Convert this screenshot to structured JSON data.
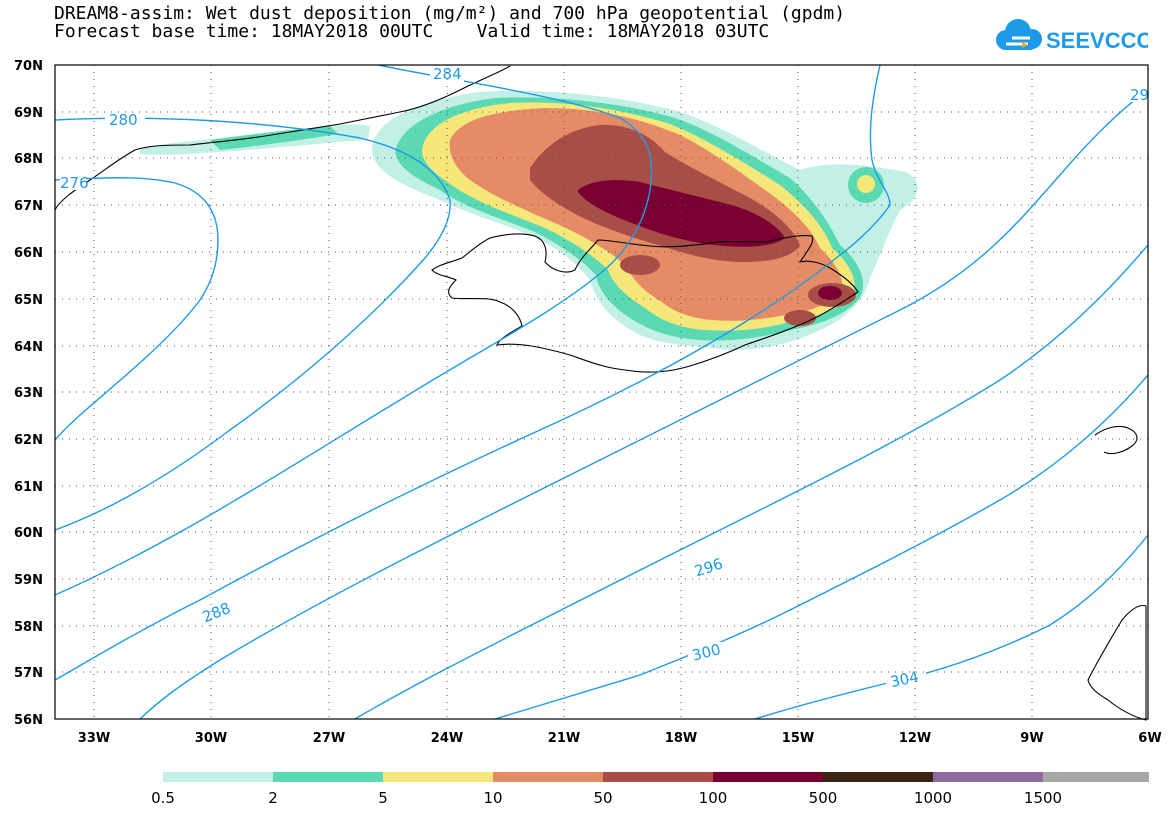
{
  "header": {
    "title_line1": "DREAM8-assim: Wet dust deposition (mg/m²) and 700 hPa geopotential (gpdm)",
    "title_line2": "Forecast base time: 18MAY2018 00UTC    Valid time: 18MAY2018 03UTC"
  },
  "logo": {
    "text": "SEEVCCC",
    "icon": "cloud-icon",
    "color": "#1e9be8"
  },
  "axes": {
    "lat_labels": [
      "70N",
      "69N",
      "68N",
      "67N",
      "66N",
      "65N",
      "64N",
      "63N",
      "62N",
      "61N",
      "60N",
      "59N",
      "58N",
      "57N",
      "56N"
    ],
    "lon_labels": [
      "33W",
      "30W",
      "27W",
      "24W",
      "21W",
      "18W",
      "15W",
      "12W",
      "9W",
      "6W"
    ]
  },
  "contours": {
    "color": "#1e9be8",
    "labels": [
      "284",
      "280",
      "276",
      "29",
      "288",
      "296",
      "300",
      "304"
    ]
  },
  "legend": {
    "colors": [
      "#c2f0e7",
      "#5ad9b2",
      "#f5e77a",
      "#e58c66",
      "#a84e47",
      "#7a0032",
      "#3c2414",
      "#8e6a9e",
      "#a7a7a7"
    ],
    "labels": [
      "0.5",
      "2",
      "5",
      "10",
      "50",
      "100",
      "500",
      "1000",
      "1500"
    ]
  }
}
